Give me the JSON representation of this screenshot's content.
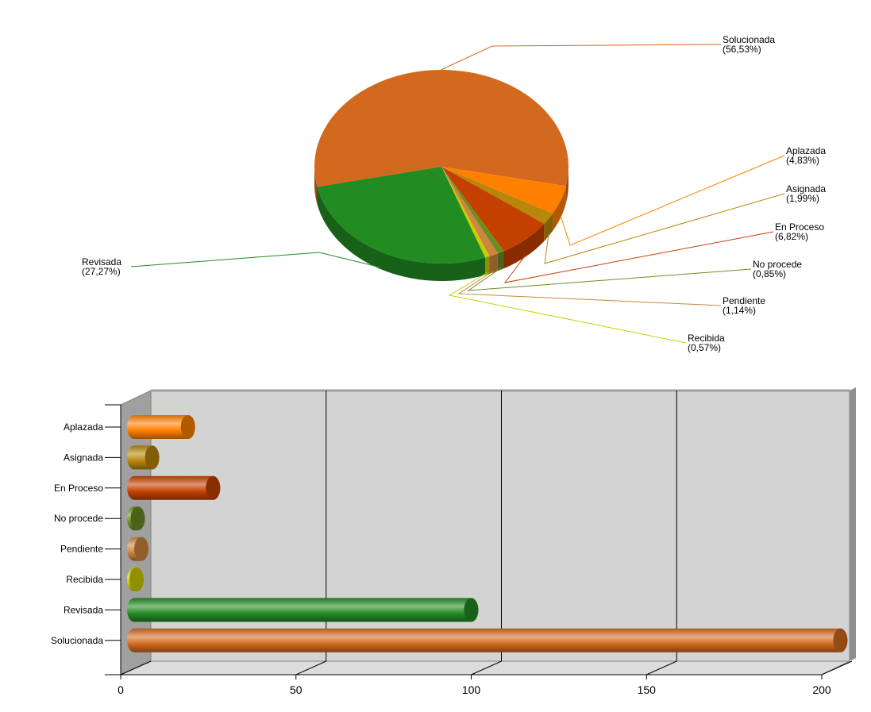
{
  "chart_data": [
    {
      "type": "pie",
      "title": "",
      "slices": [
        {
          "label": "Solucionada",
          "percent_text": "(56,53%)",
          "value": 56.53,
          "color": "#d2691e"
        },
        {
          "label": "Aplazada",
          "percent_text": "(4,83%)",
          "value": 4.83,
          "color": "#ff8000"
        },
        {
          "label": "Asignada",
          "percent_text": "(1,99%)",
          "value": 1.99,
          "color": "#b8860b"
        },
        {
          "label": "En Proceso",
          "percent_text": "(6,82%)",
          "value": 6.82,
          "color": "#c44000"
        },
        {
          "label": "No procede",
          "percent_text": "(0,85%)",
          "value": 0.85,
          "color": "#6b8e23"
        },
        {
          "label": "Pendiente",
          "percent_text": "(1,14%)",
          "value": 1.14,
          "color": "#cd853f"
        },
        {
          "label": "Recibida",
          "percent_text": "(0,57%)",
          "value": 0.57,
          "color": "#cccc00"
        },
        {
          "label": "Revisada",
          "percent_text": "(27,27%)",
          "value": 27.27,
          "color": "#228b22"
        }
      ]
    },
    {
      "type": "bar",
      "orientation": "horizontal",
      "categories": [
        "Aplazada",
        "Asignada",
        "En Proceso",
        "No procede",
        "Pendiente",
        "Recibida",
        "Revisada",
        "Solucionada"
      ],
      "values": [
        17,
        7,
        24,
        3,
        4,
        2,
        96,
        199
      ],
      "colors": [
        "#ff8000",
        "#b8860b",
        "#c44000",
        "#6b8e23",
        "#cd853f",
        "#cccc00",
        "#228b22",
        "#d2691e"
      ],
      "xlim": [
        0,
        200
      ],
      "xticks": [
        "0",
        "50",
        "100",
        "150",
        "200"
      ],
      "xlabel": "",
      "ylabel": "",
      "grid": true
    }
  ]
}
